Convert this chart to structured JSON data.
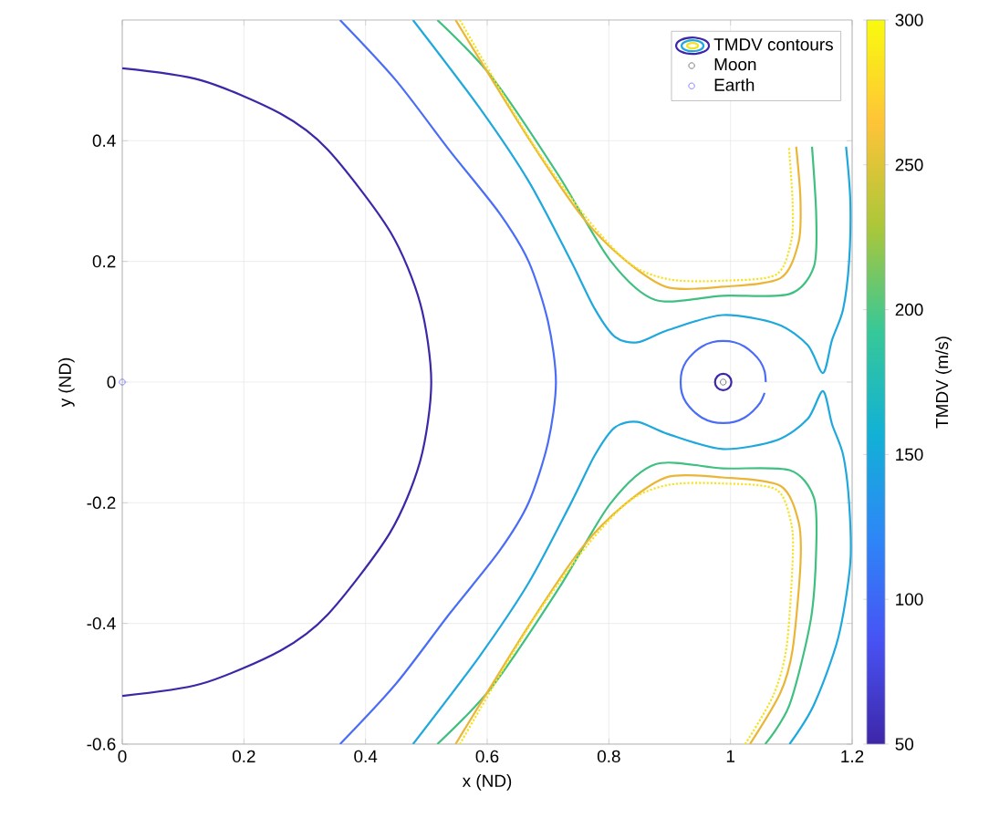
{
  "chart_data": {
    "type": "line",
    "xlabel": "x (ND)",
    "ylabel": "y (ND)",
    "clabel": "TMDV (m/s)",
    "xlim": [
      0,
      1.2
    ],
    "ylim": [
      -0.6,
      0.6
    ],
    "xticks": [
      0,
      0.2,
      0.4,
      0.6,
      0.8,
      1,
      1.2
    ],
    "yticks": [
      -0.6,
      -0.4,
      -0.2,
      0,
      0.2,
      0.4
    ],
    "clim": [
      50,
      300
    ],
    "cticks": [
      50,
      100,
      150,
      200,
      250,
      300
    ],
    "grid": true,
    "legend": "top right",
    "series": [
      {
        "name": "TMDV contours",
        "color": "#3e26a8",
        "x": [
          0,
          0.13,
          0.26,
          0.338,
          0.44,
          0.49,
          0.508,
          0.49,
          0.44,
          0.338,
          0.26,
          0.13,
          0
        ],
        "values": [
          0.52,
          0.5,
          0.445,
          0.385,
          0.25,
          0.13,
          0,
          -0.13,
          -0.25,
          -0.385,
          -0.445,
          -0.5,
          -0.52
        ]
      },
      {
        "color": "#3e26a8",
        "type": "scatter",
        "marker": "circle",
        "x": [
          0.988
        ],
        "values": [
          0
        ]
      },
      {
        "color": "#4a6cf6",
        "x": [
          0.358,
          0.45,
          0.538,
          0.62,
          0.668,
          0.7,
          0.713,
          0.7,
          0.668,
          0.62,
          0.538,
          0.45,
          0.358
        ],
        "values": [
          0.6,
          0.5,
          0.384,
          0.28,
          0.2,
          0.1,
          0,
          -0.1,
          -0.2,
          -0.28,
          -0.384,
          -0.5,
          -0.6
        ]
      },
      {
        "color": "#4a6cf6",
        "x": [
          1.058,
          1.056,
          1.049,
          1.037,
          1.023,
          1.006,
          0.988,
          0.97,
          0.953,
          0.939,
          0.927,
          0.92,
          0.918,
          0.92,
          0.927,
          0.939,
          0.953,
          0.97,
          0.988,
          1.006,
          1.023,
          1.037,
          1.049,
          1.056
        ],
        "values": [
          0,
          0.018,
          0.034,
          0.048,
          0.059,
          0.066,
          0.068,
          0.066,
          0.059,
          0.048,
          0.034,
          0.018,
          0,
          -0.018,
          -0.034,
          -0.048,
          -0.059,
          -0.066,
          -0.068,
          -0.066,
          -0.059,
          -0.048,
          -0.034,
          -0.018
        ]
      },
      {
        "color": "#1ea8dd",
        "x": [
          0.478,
          0.587,
          0.668,
          0.737,
          0.777,
          0.81,
          0.847,
          0.897,
          0.987,
          1.077,
          1.127,
          1.152,
          1.167,
          1.185,
          1.195,
          1.197,
          1.19
        ],
        "values": [
          0.6,
          0.455,
          0.333,
          0.202,
          0.121,
          0.075,
          0.066,
          0.086,
          0.111,
          0.096,
          0.061,
          0.015,
          0.07,
          0.12,
          0.2,
          0.3,
          0.39
        ]
      },
      {
        "color": "#1ea8dd",
        "x": [
          0.478,
          0.587,
          0.668,
          0.737,
          0.777,
          0.81,
          0.847,
          0.897,
          0.987,
          1.077,
          1.127,
          1.152,
          1.167,
          1.185,
          1.195,
          1.197,
          1.177,
          1.137,
          1.097
        ],
        "values": [
          -0.6,
          -0.455,
          -0.333,
          -0.202,
          -0.121,
          -0.075,
          -0.066,
          -0.086,
          -0.111,
          -0.096,
          -0.061,
          -0.015,
          -0.07,
          -0.12,
          -0.2,
          -0.3,
          -0.424,
          -0.535,
          -0.6
        ]
      },
      {
        "color": "#3fc080",
        "x": [
          0.518,
          0.608,
          0.717,
          0.802,
          0.877,
          0.987,
          1.097,
          1.137,
          1.141,
          1.134
        ],
        "values": [
          0.6,
          0.505,
          0.343,
          0.202,
          0.136,
          0.143,
          0.146,
          0.191,
          0.273,
          0.39
        ]
      },
      {
        "color": "#3fc080",
        "x": [
          0.518,
          0.608,
          0.717,
          0.802,
          0.877,
          0.987,
          1.097,
          1.137,
          1.141,
          1.132,
          1.097,
          1.057
        ],
        "values": [
          -0.6,
          -0.505,
          -0.343,
          -0.202,
          -0.136,
          -0.143,
          -0.146,
          -0.191,
          -0.273,
          -0.394,
          -0.535,
          -0.6
        ]
      },
      {
        "color": "#eab637",
        "x": [
          0.548,
          0.668,
          0.757,
          0.827,
          0.897,
          0.987,
          1.082,
          1.112,
          1.115,
          1.108
        ],
        "values": [
          0.6,
          0.404,
          0.273,
          0.202,
          0.157,
          0.158,
          0.172,
          0.232,
          0.303,
          0.39
        ]
      },
      {
        "color": "#eab637",
        "x": [
          0.548,
          0.668,
          0.757,
          0.827,
          0.897,
          0.987,
          1.082,
          1.112,
          1.115,
          1.102,
          1.082,
          1.032
        ],
        "values": [
          -0.6,
          -0.404,
          -0.273,
          -0.202,
          -0.157,
          -0.158,
          -0.172,
          -0.232,
          -0.303,
          -0.444,
          -0.515,
          -0.6
        ]
      },
      {
        "color": "#f6e21f",
        "line_style": "dotted",
        "x": [
          0.555,
          0.672,
          0.765,
          0.835,
          0.9,
          0.987,
          1.075,
          1.1,
          1.102,
          1.096
        ],
        "values": [
          0.6,
          0.4,
          0.27,
          0.196,
          0.17,
          0.168,
          0.178,
          0.235,
          0.3,
          0.39
        ]
      },
      {
        "color": "#f6e21f",
        "line_style": "dotted",
        "x": [
          0.555,
          0.672,
          0.765,
          0.835,
          0.9,
          0.987,
          1.075,
          1.1,
          1.102,
          1.092,
          1.07,
          1.024
        ],
        "values": [
          -0.6,
          -0.4,
          -0.27,
          -0.196,
          -0.17,
          -0.168,
          -0.178,
          -0.235,
          -0.3,
          -0.44,
          -0.52,
          -0.6
        ]
      },
      {
        "name": "Moon",
        "type": "scatter",
        "marker": "circle",
        "color": "#606060",
        "x": [
          0.988
        ],
        "values": [
          0
        ]
      },
      {
        "name": "Earth",
        "type": "scatter",
        "marker": "circle",
        "color": "#6b6bff",
        "x": [
          0
        ],
        "values": [
          0
        ]
      }
    ]
  }
}
